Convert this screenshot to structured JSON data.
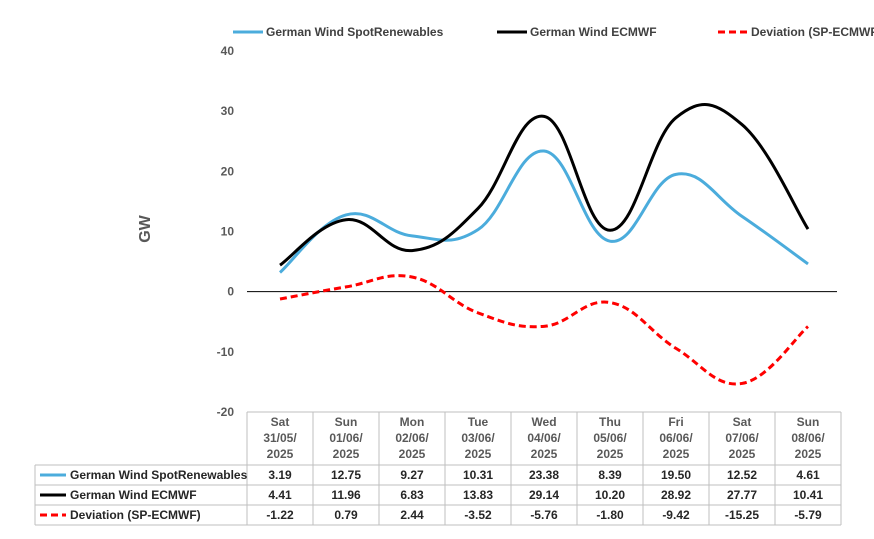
{
  "chart_data": {
    "type": "line",
    "ylabel": "GW",
    "ylim": [
      -20,
      40
    ],
    "yticks": [
      40,
      30,
      20,
      10,
      0,
      -10,
      -20
    ],
    "grid": false,
    "legend_position": "top",
    "categories": [
      [
        "Sat",
        "31/05/",
        "2025"
      ],
      [
        "Sun",
        "01/06/",
        "2025"
      ],
      [
        "Mon",
        "02/06/",
        "2025"
      ],
      [
        "Tue",
        "03/06/",
        "2025"
      ],
      [
        "Wed",
        "04/06/",
        "2025"
      ],
      [
        "Thu",
        "05/06/",
        "2025"
      ],
      [
        "Fri",
        "06/06/",
        "2025"
      ],
      [
        "Sat",
        "07/06/",
        "2025"
      ],
      [
        "Sun",
        "08/06/",
        "2025"
      ]
    ],
    "series": [
      {
        "name": "German Wind SpotRenewables",
        "color": "#4BACDC",
        "dash": "solid",
        "values": [
          3.19,
          12.75,
          9.27,
          10.31,
          23.38,
          8.39,
          19.5,
          12.52,
          4.61
        ],
        "labels": [
          "3.19",
          "12.75",
          "9.27",
          "10.31",
          "23.38",
          "8.39",
          "19.50",
          "12.52",
          "4.61"
        ]
      },
      {
        "name": "German Wind ECMWF",
        "color": "#000000",
        "dash": "solid",
        "values": [
          4.41,
          11.96,
          6.83,
          13.83,
          29.14,
          10.2,
          28.92,
          27.77,
          10.41
        ],
        "labels": [
          "4.41",
          "11.96",
          "6.83",
          "13.83",
          "29.14",
          "10.20",
          "28.92",
          "27.77",
          "10.41"
        ]
      },
      {
        "name": "Deviation (SP-ECMWF)",
        "color": "#FF0000",
        "dash": "dashed",
        "values": [
          -1.22,
          0.79,
          2.44,
          -3.52,
          -5.76,
          -1.8,
          -9.42,
          -15.25,
          -5.79
        ],
        "labels": [
          "-1.22",
          "0.79",
          "2.44",
          "-3.52",
          "-5.76",
          "-1.80",
          "-9.42",
          "-15.25",
          "-5.79"
        ]
      }
    ]
  }
}
